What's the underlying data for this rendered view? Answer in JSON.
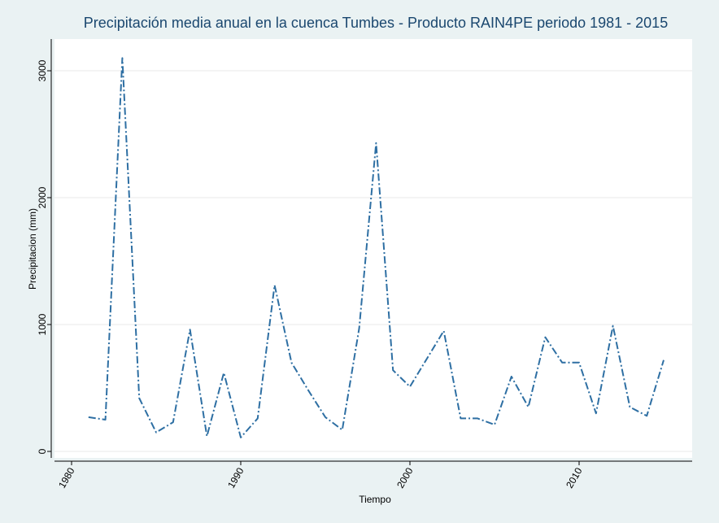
{
  "chart_data": {
    "type": "line",
    "title": "Precipitación media anual en la cuenca Tumbes - Producto RAIN4PE periodo 1981 - 2015",
    "xlabel": "Tiempo",
    "ylabel": "Precipitacion (mm)",
    "xlim": [
      1980,
      2016
    ],
    "ylim": [
      0,
      3200
    ],
    "xticks": [
      1980,
      1990,
      2000,
      2010
    ],
    "yticks": [
      0,
      1000,
      2000,
      3000
    ],
    "grid": true,
    "legend": "none",
    "series": [
      {
        "name": "Precipitacion",
        "color": "#2e6fa3",
        "line_style": "dash-dot",
        "x": [
          1981,
          1982,
          1983,
          1984,
          1985,
          1986,
          1987,
          1988,
          1989,
          1990,
          1991,
          1992,
          1993,
          1994,
          1995,
          1996,
          1997,
          1998,
          1999,
          2000,
          2001,
          2002,
          2003,
          2004,
          2005,
          2006,
          2007,
          2008,
          2009,
          2010,
          2011,
          2012,
          2013,
          2014,
          2015
        ],
        "values": [
          270,
          250,
          3100,
          420,
          150,
          230,
          960,
          120,
          620,
          110,
          260,
          1310,
          700,
          480,
          270,
          170,
          970,
          2430,
          640,
          510,
          730,
          950,
          260,
          260,
          210,
          590,
          350,
          900,
          700,
          700,
          300,
          990,
          350,
          280,
          720
        ]
      }
    ]
  },
  "colors": {
    "background": "#eaf2f3",
    "plot_background": "#ffffff",
    "title": "#1a476f",
    "line": "#2e6fa3",
    "grid": "#eaeaea"
  }
}
